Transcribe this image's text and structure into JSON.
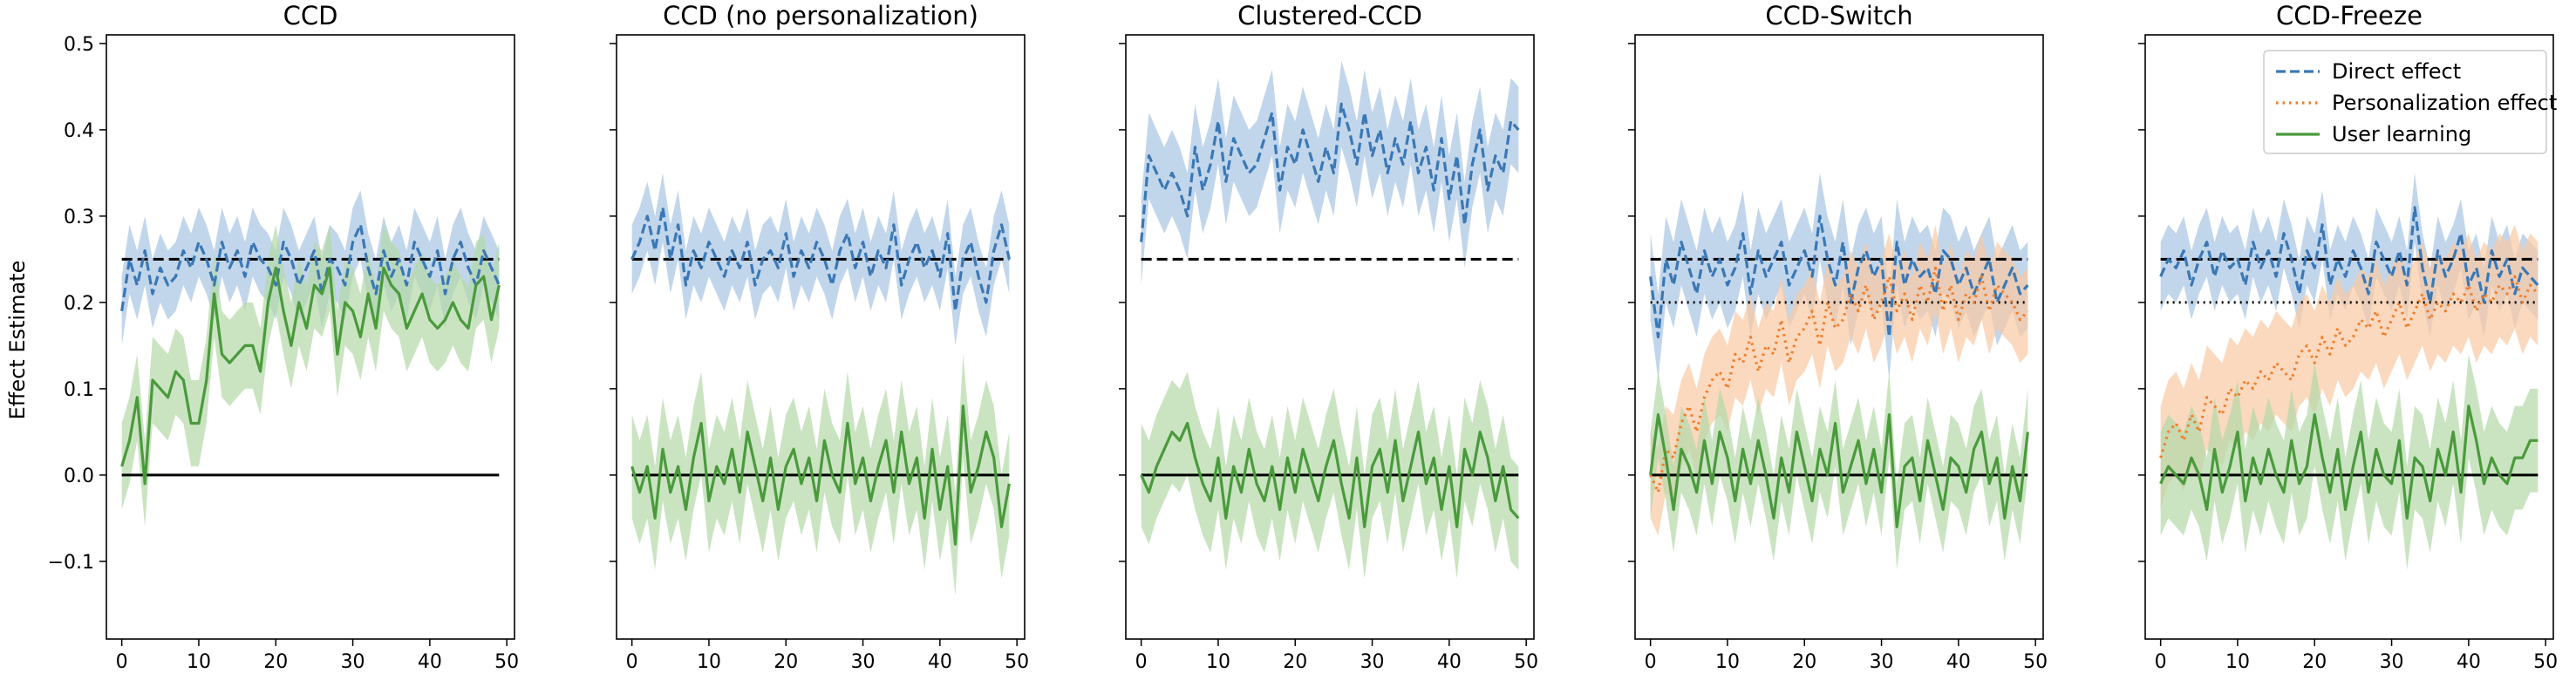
{
  "colors": {
    "direct": "#3a78b5",
    "direct_band": "#a8c4e2",
    "personalization": "#f07d2a",
    "personalization_band": "#f9c9a3",
    "learning": "#4a9a3c",
    "learning_band": "#b3d8a8",
    "reference": "#000000"
  },
  "chart_data": [
    {
      "type": "line",
      "title": "CCD",
      "ylabel": "Effect Estimate",
      "xlabel": "",
      "xlim": [
        -2,
        51
      ],
      "ylim": [
        -0.19,
        0.51
      ],
      "xticks": [
        0,
        10,
        20,
        30,
        40,
        50
      ],
      "yticks": [
        -0.1,
        0.0,
        0.1,
        0.2,
        0.3,
        0.4,
        0.5
      ],
      "yticklabels": [
        "−0.1",
        "0.0",
        "0.1",
        "0.2",
        "0.3",
        "0.4",
        "0.5"
      ],
      "grid": false,
      "reference_lines": [
        {
          "y": 0.25,
          "style": "dashed"
        },
        {
          "y": 0.0,
          "style": "solid"
        }
      ],
      "series": [
        {
          "key": "direct",
          "style": "dashed",
          "values": [
            0.19,
            0.25,
            0.22,
            0.26,
            0.21,
            0.24,
            0.22,
            0.23,
            0.26,
            0.24,
            0.27,
            0.25,
            0.22,
            0.27,
            0.24,
            0.26,
            0.23,
            0.27,
            0.25,
            0.24,
            0.22,
            0.27,
            0.25,
            0.22,
            0.24,
            0.26,
            0.21,
            0.25,
            0.24,
            0.22,
            0.27,
            0.29,
            0.24,
            0.21,
            0.26,
            0.23,
            0.25,
            0.22,
            0.27,
            0.25,
            0.23,
            0.26,
            0.21,
            0.25,
            0.27,
            0.24,
            0.22,
            0.26,
            0.24,
            0.22
          ],
          "band": 0.04
        },
        {
          "key": "learning",
          "style": "solid",
          "values": [
            0.01,
            0.04,
            0.09,
            -0.01,
            0.11,
            0.1,
            0.09,
            0.12,
            0.11,
            0.06,
            0.06,
            0.11,
            0.21,
            0.14,
            0.13,
            0.14,
            0.15,
            0.15,
            0.12,
            0.2,
            0.24,
            0.19,
            0.15,
            0.2,
            0.17,
            0.22,
            0.21,
            0.24,
            0.14,
            0.2,
            0.19,
            0.16,
            0.21,
            0.17,
            0.24,
            0.22,
            0.21,
            0.17,
            0.19,
            0.21,
            0.18,
            0.17,
            0.18,
            0.2,
            0.18,
            0.17,
            0.22,
            0.23,
            0.18,
            0.22
          ],
          "band": 0.05
        }
      ]
    },
    {
      "type": "line",
      "title": "CCD (no personalization)",
      "xlabel": "",
      "xlim": [
        -2,
        51
      ],
      "ylim": [
        -0.19,
        0.51
      ],
      "xticks": [
        0,
        10,
        20,
        30,
        40,
        50
      ],
      "grid": false,
      "reference_lines": [
        {
          "y": 0.25,
          "style": "dashed"
        },
        {
          "y": 0.0,
          "style": "solid"
        }
      ],
      "series": [
        {
          "key": "direct",
          "style": "dashed",
          "values": [
            0.25,
            0.27,
            0.3,
            0.26,
            0.31,
            0.25,
            0.29,
            0.22,
            0.26,
            0.24,
            0.27,
            0.25,
            0.23,
            0.26,
            0.24,
            0.27,
            0.22,
            0.25,
            0.26,
            0.24,
            0.28,
            0.23,
            0.26,
            0.24,
            0.27,
            0.25,
            0.22,
            0.26,
            0.28,
            0.24,
            0.27,
            0.23,
            0.26,
            0.24,
            0.29,
            0.22,
            0.25,
            0.27,
            0.24,
            0.26,
            0.23,
            0.28,
            0.19,
            0.25,
            0.27,
            0.23,
            0.2,
            0.26,
            0.29,
            0.25
          ],
          "band": 0.04
        },
        {
          "key": "learning",
          "style": "solid",
          "values": [
            0.01,
            -0.02,
            0.01,
            -0.05,
            0.03,
            -0.02,
            0.01,
            -0.04,
            0.02,
            0.06,
            -0.03,
            0.01,
            -0.01,
            0.03,
            -0.02,
            0.05,
            0.01,
            -0.03,
            0.02,
            -0.04,
            0.01,
            0.03,
            -0.01,
            0.02,
            -0.03,
            0.04,
            0.0,
            -0.02,
            0.06,
            -0.01,
            0.02,
            -0.03,
            0.01,
            0.04,
            -0.02,
            0.05,
            -0.01,
            0.02,
            -0.05,
            0.03,
            -0.04,
            0.01,
            -0.08,
            0.08,
            -0.02,
            0.01,
            0.05,
            0.02,
            -0.06,
            -0.01
          ],
          "band": 0.06
        }
      ]
    },
    {
      "type": "line",
      "title": "Clustered-CCD",
      "xlabel": "",
      "xlim": [
        -2,
        51
      ],
      "ylim": [
        -0.19,
        0.51
      ],
      "xticks": [
        0,
        10,
        20,
        30,
        40,
        50
      ],
      "grid": false,
      "reference_lines": [
        {
          "y": 0.25,
          "style": "dashed"
        },
        {
          "y": 0.0,
          "style": "solid"
        }
      ],
      "series": [
        {
          "key": "direct",
          "style": "dashed",
          "values": [
            0.27,
            0.37,
            0.35,
            0.33,
            0.35,
            0.33,
            0.3,
            0.38,
            0.33,
            0.36,
            0.41,
            0.34,
            0.39,
            0.37,
            0.35,
            0.36,
            0.39,
            0.42,
            0.33,
            0.38,
            0.36,
            0.4,
            0.37,
            0.34,
            0.38,
            0.35,
            0.43,
            0.4,
            0.36,
            0.42,
            0.37,
            0.4,
            0.35,
            0.39,
            0.36,
            0.41,
            0.35,
            0.38,
            0.33,
            0.39,
            0.32,
            0.37,
            0.29,
            0.36,
            0.4,
            0.33,
            0.37,
            0.35,
            0.41,
            0.4
          ],
          "band": 0.05
        },
        {
          "key": "learning",
          "style": "solid",
          "values": [
            0.0,
            -0.02,
            0.01,
            0.03,
            0.05,
            0.04,
            0.06,
            0.02,
            -0.01,
            -0.03,
            0.02,
            -0.05,
            0.01,
            -0.02,
            0.03,
            -0.01,
            -0.03,
            0.01,
            -0.04,
            0.02,
            -0.02,
            0.03,
            0.0,
            -0.03,
            0.01,
            0.04,
            -0.01,
            -0.05,
            0.02,
            -0.06,
            0.01,
            0.03,
            -0.02,
            0.04,
            -0.03,
            0.01,
            0.05,
            -0.01,
            0.02,
            -0.04,
            0.01,
            -0.06,
            0.03,
            0.0,
            0.05,
            0.02,
            -0.03,
            0.01,
            -0.04,
            -0.05
          ],
          "band": 0.06
        }
      ]
    },
    {
      "type": "line",
      "title": "CCD-Switch",
      "xlabel": "",
      "xlim": [
        -2,
        51
      ],
      "ylim": [
        -0.19,
        0.51
      ],
      "xticks": [
        0,
        10,
        20,
        30,
        40,
        50
      ],
      "grid": false,
      "reference_lines": [
        {
          "y": 0.25,
          "style": "dashed"
        },
        {
          "y": 0.2,
          "style": "dotted"
        },
        {
          "y": 0.0,
          "style": "solid"
        }
      ],
      "series": [
        {
          "key": "direct",
          "style": "dashed",
          "values": [
            0.23,
            0.16,
            0.25,
            0.22,
            0.27,
            0.24,
            0.21,
            0.26,
            0.23,
            0.25,
            0.22,
            0.24,
            0.28,
            0.21,
            0.26,
            0.23,
            0.25,
            0.27,
            0.22,
            0.24,
            0.26,
            0.23,
            0.3,
            0.25,
            0.22,
            0.27,
            0.2,
            0.24,
            0.26,
            0.23,
            0.25,
            0.16,
            0.27,
            0.22,
            0.25,
            0.23,
            0.24,
            0.21,
            0.26,
            0.25,
            0.22,
            0.24,
            0.21,
            0.23,
            0.25,
            0.2,
            0.22,
            0.24,
            0.21,
            0.22
          ],
          "band": 0.05
        },
        {
          "key": "personalization",
          "style": "dotted",
          "values": [
            0.0,
            -0.02,
            0.03,
            0.02,
            0.06,
            0.08,
            0.05,
            0.09,
            0.11,
            0.12,
            0.1,
            0.14,
            0.13,
            0.16,
            0.12,
            0.15,
            0.14,
            0.18,
            0.13,
            0.16,
            0.17,
            0.19,
            0.15,
            0.2,
            0.17,
            0.18,
            0.21,
            0.19,
            0.22,
            0.18,
            0.2,
            0.23,
            0.19,
            0.21,
            0.18,
            0.22,
            0.2,
            0.24,
            0.19,
            0.22,
            0.18,
            0.21,
            0.2,
            0.23,
            0.19,
            0.22,
            0.21,
            0.2,
            0.18,
            0.19
          ],
          "band": 0.05
        },
        {
          "key": "learning",
          "style": "solid",
          "values": [
            0.0,
            0.07,
            0.02,
            -0.04,
            0.03,
            0.01,
            -0.02,
            0.04,
            -0.01,
            0.05,
            0.02,
            -0.03,
            0.03,
            -0.01,
            0.04,
            0.0,
            -0.05,
            0.02,
            -0.02,
            0.05,
            0.01,
            -0.03,
            0.03,
            0.0,
            0.06,
            -0.02,
            0.01,
            0.04,
            -0.01,
            0.03,
            -0.02,
            0.07,
            -0.06,
            0.01,
            0.02,
            -0.03,
            0.04,
            0.0,
            -0.04,
            0.02,
            0.01,
            -0.02,
            0.03,
            0.05,
            -0.01,
            0.02,
            -0.05,
            0.01,
            -0.03,
            0.05
          ],
          "band": 0.05
        }
      ]
    },
    {
      "type": "line",
      "title": "CCD-Freeze",
      "xlabel": "",
      "xlim": [
        -2,
        51
      ],
      "ylim": [
        -0.19,
        0.51
      ],
      "xticks": [
        0,
        10,
        20,
        30,
        40,
        50
      ],
      "grid": false,
      "legend": {
        "position": "top-right",
        "entries": [
          {
            "key": "direct",
            "label": "Direct effect",
            "style": "dashed"
          },
          {
            "key": "personalization",
            "label": "Personalization effect",
            "style": "dotted"
          },
          {
            "key": "learning",
            "label": "User learning",
            "style": "solid"
          }
        ]
      },
      "reference_lines": [
        {
          "y": 0.25,
          "style": "dashed"
        },
        {
          "y": 0.2,
          "style": "dotted"
        },
        {
          "y": 0.0,
          "style": "solid"
        }
      ],
      "series": [
        {
          "key": "direct",
          "style": "dashed",
          "values": [
            0.23,
            0.25,
            0.24,
            0.26,
            0.22,
            0.25,
            0.27,
            0.23,
            0.26,
            0.24,
            0.25,
            0.22,
            0.27,
            0.24,
            0.26,
            0.23,
            0.28,
            0.25,
            0.21,
            0.26,
            0.24,
            0.29,
            0.22,
            0.25,
            0.23,
            0.26,
            0.24,
            0.21,
            0.27,
            0.25,
            0.23,
            0.26,
            0.22,
            0.31,
            0.24,
            0.2,
            0.26,
            0.23,
            0.25,
            0.28,
            0.22,
            0.24,
            0.2,
            0.26,
            0.23,
            0.25,
            0.21,
            0.24,
            0.23,
            0.22
          ],
          "band": 0.04
        },
        {
          "key": "personalization",
          "style": "dotted",
          "values": [
            0.02,
            0.05,
            0.06,
            0.04,
            0.07,
            0.05,
            0.09,
            0.08,
            0.07,
            0.1,
            0.09,
            0.11,
            0.1,
            0.12,
            0.11,
            0.13,
            0.12,
            0.11,
            0.14,
            0.15,
            0.13,
            0.16,
            0.14,
            0.17,
            0.15,
            0.16,
            0.18,
            0.17,
            0.19,
            0.16,
            0.18,
            0.2,
            0.17,
            0.19,
            0.21,
            0.18,
            0.2,
            0.19,
            0.21,
            0.2,
            0.22,
            0.19,
            0.21,
            0.2,
            0.22,
            0.21,
            0.23,
            0.2,
            0.22,
            0.21
          ],
          "band": 0.06
        },
        {
          "key": "learning",
          "style": "solid",
          "values": [
            -0.01,
            0.01,
            0.0,
            -0.01,
            0.02,
            0.0,
            -0.04,
            0.03,
            -0.02,
            0.01,
            0.05,
            -0.03,
            0.02,
            -0.01,
            0.03,
            0.0,
            -0.02,
            0.04,
            -0.01,
            0.01,
            0.07,
            0.02,
            -0.02,
            0.03,
            -0.04,
            0.01,
            0.05,
            -0.02,
            0.03,
            0.0,
            -0.01,
            0.04,
            -0.05,
            0.02,
            0.01,
            -0.03,
            0.03,
            0.0,
            0.05,
            -0.02,
            0.08,
            0.04,
            -0.01,
            0.02,
            0.0,
            -0.01,
            0.02,
            0.02,
            0.04,
            0.04
          ],
          "band": 0.06
        }
      ]
    }
  ]
}
